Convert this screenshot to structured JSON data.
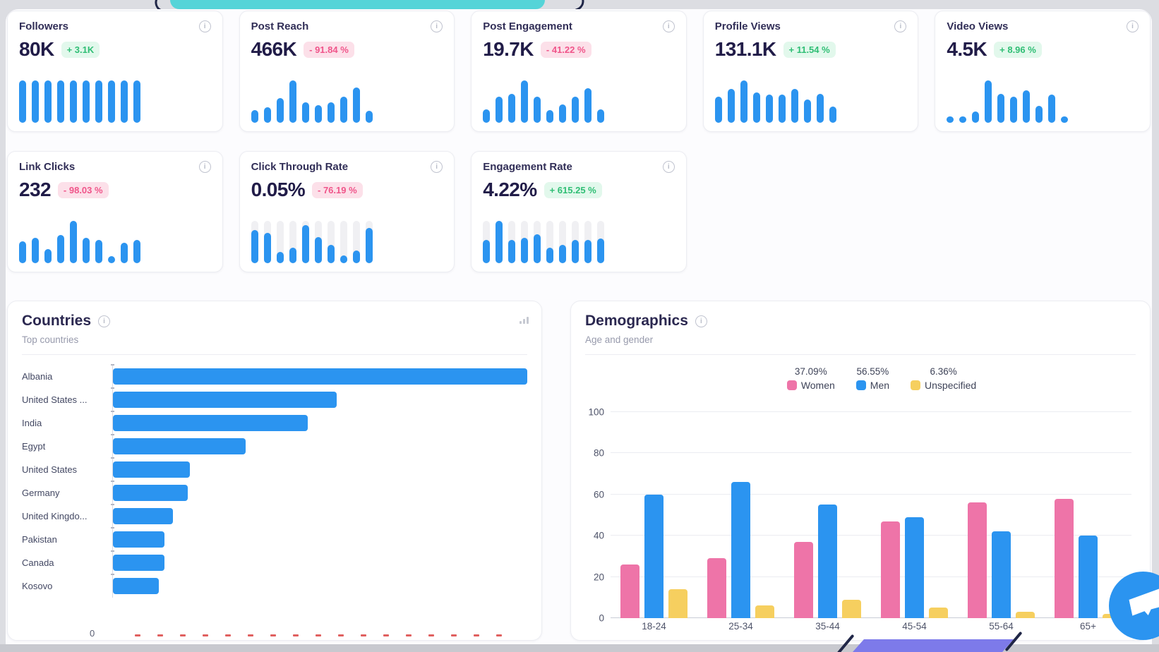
{
  "colors": {
    "accent_blue": "#2b94f0",
    "pink": "#ee74a8",
    "yellow": "#f6cf5f",
    "green_text": "#2fbe74",
    "green_bg": "#e2f8ec",
    "red_text": "#f0558a",
    "red_bg": "#fce0e9",
    "teal": "#55d4d8",
    "purple": "#7d7aea",
    "navy": "#202647",
    "track_gray": "#f0f0f3",
    "strip_gray": "#c8c9cf"
  },
  "kpi_cards": [
    {
      "title": "Followers",
      "value": "80K",
      "change": "+ 3.1K",
      "trend": "up",
      "has_track": false,
      "bars": [
        100,
        100,
        100,
        100,
        100,
        100,
        100,
        100,
        100,
        100
      ]
    },
    {
      "title": "Post Reach",
      "value": "466K",
      "change": "- 91.84 %",
      "trend": "down",
      "has_track": false,
      "bars": [
        30,
        36,
        58,
        100,
        48,
        42,
        48,
        62,
        84,
        28
      ]
    },
    {
      "title": "Post Engagement",
      "value": "19.7K",
      "change": "- 41.22 %",
      "trend": "down",
      "has_track": false,
      "bars": [
        32,
        62,
        68,
        100,
        62,
        30,
        44,
        62,
        82,
        32
      ]
    },
    {
      "title": "Profile Views",
      "value": "131.1K",
      "change": "+ 11.54 %",
      "trend": "up",
      "has_track": false,
      "bars": [
        62,
        80,
        100,
        72,
        66,
        66,
        80,
        55,
        68,
        38
      ]
    },
    {
      "title": "Video Views",
      "value": "4.5K",
      "change": "+ 8.96 %",
      "trend": "up",
      "has_track": false,
      "bars": [
        12,
        6,
        26,
        100,
        68,
        62,
        76,
        40,
        66,
        14
      ]
    },
    {
      "title": "Link Clicks",
      "value": "232",
      "change": "- 98.03 %",
      "trend": "down",
      "has_track": false,
      "bars": [
        52,
        60,
        34,
        66,
        100,
        60,
        55,
        16,
        48,
        55
      ]
    },
    {
      "title": "Click Through Rate",
      "value": "0.05%",
      "change": "- 76.19 %",
      "trend": "down",
      "has_track": true,
      "bars": [
        78,
        72,
        26,
        36,
        90,
        62,
        44,
        18,
        30,
        84
      ]
    },
    {
      "title": "Engagement Rate",
      "value": "4.22%",
      "change": "+ 615.25 %",
      "trend": "up",
      "has_track": true,
      "bars": [
        55,
        100,
        55,
        60,
        68,
        36,
        44,
        55,
        55,
        58
      ]
    }
  ],
  "countries": {
    "title": "Countries",
    "subtitle": "Top countries",
    "axis_zero": "0",
    "rows": [
      {
        "label": "Albania",
        "pct": 100
      },
      {
        "label": "United States ...",
        "pct": 54
      },
      {
        "label": "India",
        "pct": 47
      },
      {
        "label": "Egypt",
        "pct": 32
      },
      {
        "label": "United States",
        "pct": 18.5
      },
      {
        "label": "Germany",
        "pct": 18
      },
      {
        "label": "United Kingdo...",
        "pct": 14.5
      },
      {
        "label": "Pakistan",
        "pct": 12.5
      },
      {
        "label": "Canada",
        "pct": 12.5
      },
      {
        "label": "Kosovo",
        "pct": 11
      }
    ]
  },
  "demographics": {
    "title": "Demographics",
    "subtitle": "Age and gender",
    "axis_zero": "0",
    "legend": [
      {
        "pct": "37.09%",
        "label": "Women",
        "color": "#ee74a8"
      },
      {
        "pct": "56.55%",
        "label": "Men",
        "color": "#2b94f0"
      },
      {
        "pct": "6.36%",
        "label": "Unspecified",
        "color": "#f6cf5f"
      }
    ],
    "y_ticks": [
      100,
      80,
      60,
      40,
      20,
      0
    ],
    "categories": [
      "18-24",
      "25-34",
      "35-44",
      "45-54",
      "55-64",
      "65+"
    ],
    "series": [
      {
        "name": "Women",
        "color": "#ee74a8",
        "values": [
          26,
          29,
          37,
          47,
          56,
          58
        ]
      },
      {
        "name": "Men",
        "color": "#2b94f0",
        "values": [
          60,
          66,
          55,
          49,
          42,
          40
        ]
      },
      {
        "name": "Unspecified",
        "color": "#f6cf5f",
        "values": [
          14,
          6,
          9,
          5,
          3,
          2
        ]
      }
    ]
  },
  "chart_data": [
    {
      "type": "bar",
      "orientation": "horizontal",
      "title": "Countries",
      "subtitle": "Top countries",
      "categories": [
        "Albania",
        "United States ...",
        "India",
        "Egypt",
        "United States",
        "Germany",
        "United Kingdo...",
        "Pakistan",
        "Canada",
        "Kosovo"
      ],
      "values_pct_of_max": [
        100,
        54,
        47,
        32,
        18.5,
        18,
        14.5,
        12.5,
        12.5,
        11
      ],
      "xlabel": "",
      "ylabel": "",
      "axis_start_label": "0"
    },
    {
      "type": "bar",
      "title": "Demographics",
      "subtitle": "Age and gender",
      "categories": [
        "18-24",
        "25-34",
        "35-44",
        "45-54",
        "55-64",
        "65+"
      ],
      "series": [
        {
          "name": "Women",
          "values": [
            26,
            29,
            37,
            47,
            56,
            58
          ]
        },
        {
          "name": "Men",
          "values": [
            60,
            66,
            55,
            49,
            42,
            40
          ]
        },
        {
          "name": "Unspecified",
          "values": [
            14,
            6,
            9,
            5,
            3,
            2
          ]
        }
      ],
      "legend_totals": {
        "Women": "37.09%",
        "Men": "56.55%",
        "Unspecified": "6.36%"
      },
      "ylim": [
        0,
        100
      ],
      "grid": true,
      "legend_position": "top"
    }
  ]
}
